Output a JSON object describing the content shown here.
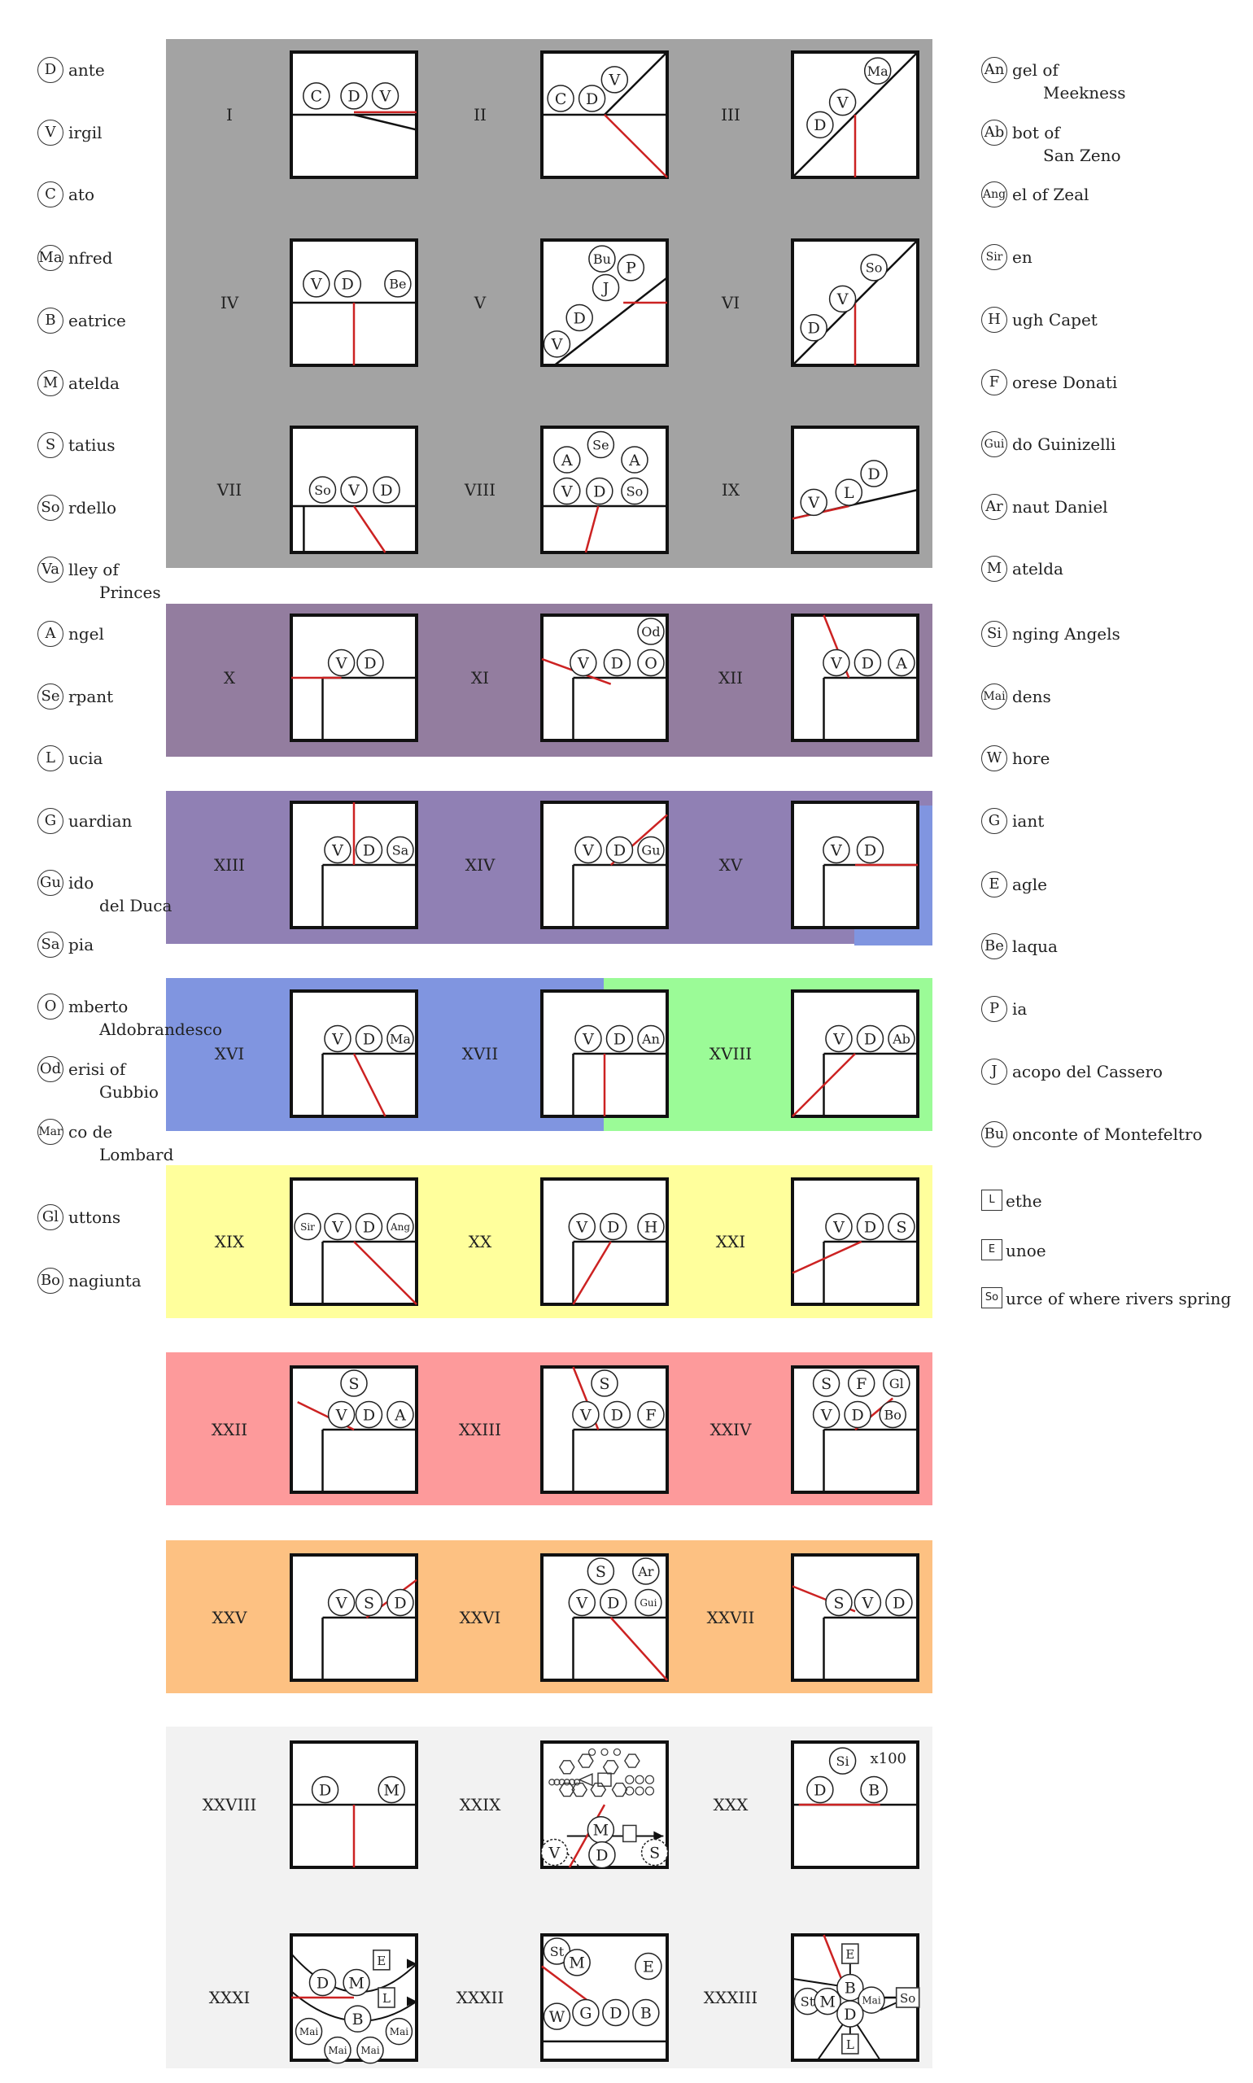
{
  "legend_left": [
    {
      "abbr": "D",
      "rest": [
        "ante"
      ]
    },
    {
      "abbr": "V",
      "rest": [
        "irgil"
      ]
    },
    {
      "abbr": "C",
      "rest": [
        "ato"
      ]
    },
    {
      "abbr": "Ma",
      "rest": [
        "nfred"
      ]
    },
    {
      "abbr": "B",
      "rest": [
        "eatrice"
      ]
    },
    {
      "abbr": "M",
      "rest": [
        "atelda"
      ]
    },
    {
      "abbr": "S",
      "rest": [
        "tatius"
      ]
    },
    {
      "abbr": "So",
      "rest": [
        "rdello"
      ]
    },
    {
      "abbr": "Va",
      "rest": [
        "lley of",
        "Princes"
      ]
    },
    {
      "abbr": "A",
      "rest": [
        "ngel"
      ]
    },
    {
      "abbr": "Se",
      "rest": [
        "rpant"
      ]
    },
    {
      "abbr": "L",
      "rest": [
        "ucia"
      ]
    },
    {
      "abbr": "G",
      "rest": [
        "uardian"
      ]
    },
    {
      "abbr": "Gu",
      "rest": [
        "ido",
        "del Duca"
      ]
    },
    {
      "abbr": "Sa",
      "rest": [
        "pia"
      ]
    },
    {
      "abbr": "O",
      "rest": [
        "mberto",
        "Aldobrandesco"
      ]
    },
    {
      "abbr": "Od",
      "rest": [
        "erisi of",
        "Gubbio"
      ]
    },
    {
      "abbr": "Mar",
      "rest": [
        "co de",
        "Lombard"
      ]
    },
    {
      "abbr": "Gl",
      "rest": [
        "uttons"
      ]
    },
    {
      "abbr": "Bo",
      "rest": [
        "nagiunta"
      ]
    }
  ],
  "legend_right": [
    {
      "abbr": "An",
      "rest": [
        "gel of",
        "Meekness"
      ]
    },
    {
      "abbr": "Ab",
      "rest": [
        "bot of",
        "San Zeno"
      ]
    },
    {
      "abbr": "Ang",
      "rest": [
        "el of Zeal"
      ]
    },
    {
      "abbr": "Sir",
      "rest": [
        "en"
      ]
    },
    {
      "abbr": "H",
      "rest": [
        "ugh Capet"
      ]
    },
    {
      "abbr": "F",
      "rest": [
        "orese Donati"
      ]
    },
    {
      "abbr": "Gui",
      "rest": [
        "do Guinizelli"
      ]
    },
    {
      "abbr": "Ar",
      "rest": [
        "naut Daniel"
      ]
    },
    {
      "abbr": "M",
      "rest": [
        "atelda"
      ]
    },
    {
      "abbr": "Si",
      "rest": [
        "nging Angels"
      ]
    },
    {
      "abbr": "Mai",
      "rest": [
        "dens"
      ]
    },
    {
      "abbr": "W",
      "rest": [
        "hore"
      ]
    },
    {
      "abbr": "G",
      "rest": [
        "iant"
      ]
    },
    {
      "abbr": "E",
      "rest": [
        "agle"
      ]
    },
    {
      "abbr": "Be",
      "rest": [
        "laqua"
      ]
    },
    {
      "abbr": "P",
      "rest": [
        "ia"
      ]
    },
    {
      "abbr": "J",
      "rest": [
        "acopo del Cassero"
      ]
    },
    {
      "abbr": "Bu",
      "rest": [
        "onconte of Montefeltro"
      ]
    },
    {
      "abbr": "L",
      "rest": [
        "ethe"
      ],
      "square": true
    },
    {
      "abbr": "E",
      "rest": [
        "unoe"
      ],
      "square": true
    },
    {
      "abbr": "So",
      "rest": [
        "urce of where rivers spring"
      ],
      "square": true
    }
  ],
  "colors": {
    "gray": "#a3a3a3",
    "mauve": "#937d9f",
    "purple": "#9080b4",
    "blue": "#8095e0",
    "green": "#9bfb97",
    "yellow": "#ffff9c",
    "pink": "#fd9a9b",
    "orange": "#fdc182",
    "light": "#f2f2f2",
    "red": "#cc2222"
  },
  "cantos": [
    {
      "numeral": "I",
      "circles": [
        [
          "C",
          20,
          35
        ],
        [
          "D",
          50,
          35
        ],
        [
          "V",
          75,
          35
        ]
      ]
    },
    {
      "numeral": "II",
      "circles": [
        [
          "C",
          15,
          37
        ],
        [
          "D",
          40,
          37
        ],
        [
          "V",
          58,
          22
        ]
      ]
    },
    {
      "numeral": "III",
      "circles": [
        [
          "Ma",
          68,
          15
        ],
        [
          "V",
          40,
          40
        ],
        [
          "D",
          22,
          58
        ]
      ]
    },
    {
      "numeral": "IV",
      "circles": [
        [
          "V",
          20,
          35
        ],
        [
          "D",
          45,
          35
        ],
        [
          "Be",
          85,
          35
        ]
      ]
    },
    {
      "numeral": "V",
      "circles": [
        [
          "Bu",
          48,
          15
        ],
        [
          "P",
          71,
          22
        ],
        [
          "J",
          51,
          38
        ],
        [
          "D",
          30,
          62
        ],
        [
          "V",
          12,
          83
        ]
      ]
    },
    {
      "numeral": "VI",
      "circles": [
        [
          "So",
          65,
          22
        ],
        [
          "V",
          40,
          47
        ],
        [
          "D",
          17,
          70
        ]
      ]
    },
    {
      "numeral": "VII",
      "circles": [
        [
          "So",
          25,
          50
        ],
        [
          "V",
          50,
          50
        ],
        [
          "D",
          76,
          50
        ]
      ]
    },
    {
      "numeral": "VIII",
      "circles": [
        [
          "Se",
          47,
          14
        ],
        [
          "A",
          20,
          26
        ],
        [
          "A",
          74,
          26
        ],
        [
          "V",
          20,
          51
        ],
        [
          "D",
          46,
          51
        ],
        [
          "So",
          74,
          51
        ]
      ]
    },
    {
      "numeral": "IX",
      "circles": [
        [
          "D",
          65,
          37
        ],
        [
          "L",
          45,
          52
        ],
        [
          "V",
          17,
          60
        ]
      ]
    },
    {
      "numeral": "X",
      "circles": [
        [
          "V",
          40,
          38
        ],
        [
          "D",
          63,
          38
        ]
      ]
    },
    {
      "numeral": "XI",
      "circles": [
        [
          "Od",
          87,
          13
        ],
        [
          "V",
          33,
          38
        ],
        [
          "D",
          60,
          38
        ],
        [
          "O",
          87,
          38
        ]
      ]
    },
    {
      "numeral": "XII",
      "circles": [
        [
          "V",
          35,
          38
        ],
        [
          "D",
          60,
          38
        ],
        [
          "A",
          87,
          38
        ]
      ]
    },
    {
      "numeral": "XIII",
      "circles": [
        [
          "V",
          37,
          38
        ],
        [
          "D",
          62,
          38
        ],
        [
          "Sa",
          87,
          38
        ]
      ]
    },
    {
      "numeral": "XIV",
      "circles": [
        [
          "V",
          37,
          38
        ],
        [
          "D",
          62,
          38
        ],
        [
          "Gu",
          87,
          38
        ]
      ]
    },
    {
      "numeral": "XV",
      "circles": [
        [
          "V",
          35,
          38
        ],
        [
          "D",
          62,
          38
        ]
      ]
    },
    {
      "numeral": "XVI",
      "circles": [
        [
          "V",
          37,
          38
        ],
        [
          "D",
          62,
          38
        ],
        [
          "Ma",
          87,
          38
        ]
      ]
    },
    {
      "numeral": "XVII",
      "circles": [
        [
          "V",
          37,
          38
        ],
        [
          "D",
          62,
          38
        ],
        [
          "An",
          87,
          38
        ]
      ]
    },
    {
      "numeral": "XVIII",
      "circles": [
        [
          "V",
          37,
          38
        ],
        [
          "D",
          62,
          38
        ],
        [
          "Ab",
          87,
          38
        ]
      ]
    },
    {
      "numeral": "XIX",
      "circles": [
        [
          "Sir",
          13,
          38
        ],
        [
          "V",
          37,
          38
        ],
        [
          "D",
          62,
          38
        ],
        [
          "Ang",
          87,
          38
        ]
      ]
    },
    {
      "numeral": "XX",
      "circles": [
        [
          "V",
          32,
          38
        ],
        [
          "D",
          57,
          38
        ],
        [
          "H",
          87,
          38
        ]
      ]
    },
    {
      "numeral": "XXI",
      "circles": [
        [
          "V",
          37,
          38
        ],
        [
          "D",
          62,
          38
        ],
        [
          "S",
          87,
          38
        ]
      ]
    },
    {
      "numeral": "XXII",
      "circles": [
        [
          "S",
          50,
          13
        ],
        [
          "V",
          40,
          38
        ],
        [
          "D",
          62,
          38
        ],
        [
          "A",
          87,
          38
        ]
      ]
    },
    {
      "numeral": "XXIII",
      "circles": [
        [
          "S",
          50,
          13
        ],
        [
          "V",
          35,
          38
        ],
        [
          "D",
          60,
          38
        ],
        [
          "F",
          87,
          38
        ]
      ]
    },
    {
      "numeral": "XXIV",
      "circles": [
        [
          "S",
          27,
          13
        ],
        [
          "F",
          55,
          13
        ],
        [
          "Gl",
          83,
          13
        ],
        [
          "V",
          27,
          38
        ],
        [
          "D",
          52,
          38
        ],
        [
          "Bo",
          80,
          38
        ]
      ]
    },
    {
      "numeral": "XXV",
      "circles": [
        [
          "V",
          40,
          38
        ],
        [
          "S",
          62,
          38
        ],
        [
          "D",
          87,
          38
        ]
      ]
    },
    {
      "numeral": "XXVI",
      "circles": [
        [
          "S",
          47,
          13
        ],
        [
          "Ar",
          83,
          13
        ],
        [
          "V",
          32,
          38
        ],
        [
          "D",
          57,
          38
        ],
        [
          "Gui",
          85,
          38
        ]
      ]
    },
    {
      "numeral": "XXVII",
      "circles": [
        [
          "S",
          37,
          38
        ],
        [
          "V",
          60,
          38
        ],
        [
          "D",
          85,
          38
        ]
      ]
    },
    {
      "numeral": "XXVIII",
      "circles": [
        [
          "D",
          27,
          38
        ],
        [
          "M",
          80,
          38
        ]
      ]
    },
    {
      "numeral": "XXIX",
      "circles": [
        [
          "M",
          47,
          70
        ],
        [
          "D",
          48,
          90
        ],
        [
          "V",
          10,
          88
        ],
        [
          "S",
          90,
          88
        ]
      ]
    },
    {
      "numeral": "XXX",
      "circles": [
        [
          "Si",
          40,
          15
        ],
        [
          "D",
          22,
          38
        ],
        [
          "B",
          65,
          38
        ]
      ],
      "note": "x100"
    },
    {
      "numeral": "XXXI",
      "circles": [
        [
          "D",
          25,
          38
        ],
        [
          "M",
          52,
          38
        ],
        [
          "B",
          53,
          67
        ],
        [
          "Mai",
          14,
          77
        ],
        [
          "Mai",
          86,
          77
        ],
        [
          "Mai",
          37,
          92
        ],
        [
          "Mai",
          63,
          92
        ]
      ],
      "squares": [
        [
          "E",
          72,
          20
        ],
        [
          "L",
          76,
          50
        ]
      ]
    },
    {
      "numeral": "XXXII",
      "circles": [
        [
          "St",
          12,
          13
        ],
        [
          "M",
          28,
          22
        ],
        [
          "E",
          85,
          25
        ],
        [
          "W",
          12,
          65
        ],
        [
          "G",
          35,
          62
        ],
        [
          "D",
          59,
          62
        ],
        [
          "B",
          83,
          62
        ]
      ]
    },
    {
      "numeral": "XXXIII",
      "circles": [
        [
          "St",
          12,
          53
        ],
        [
          "M",
          28,
          53
        ],
        [
          "B",
          46,
          42
        ],
        [
          "Mai",
          63,
          52
        ],
        [
          "D",
          46,
          63
        ]
      ],
      "squares": [
        [
          "E",
          46,
          15
        ],
        [
          "L",
          46,
          87
        ],
        [
          "So",
          92,
          50
        ]
      ]
    }
  ]
}
